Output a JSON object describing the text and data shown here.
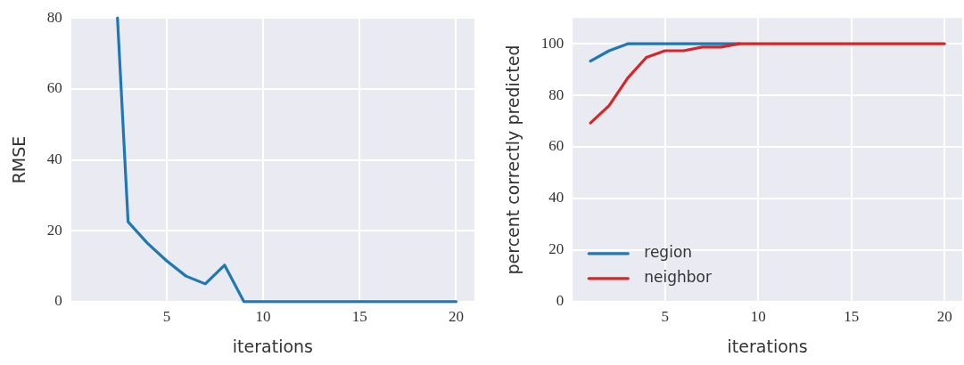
{
  "chart_data": [
    {
      "type": "line",
      "xlabel": "iterations",
      "ylabel": "RMSE",
      "xlim": [
        0.05,
        20.95
      ],
      "xticks": [
        5,
        10,
        15,
        20
      ],
      "ylim": [
        0,
        80
      ],
      "yticks": [
        0,
        20,
        40,
        60,
        80
      ],
      "grid": true,
      "series": [
        {
          "color": "#1f77b4",
          "x": [
            2.45,
            3,
            4,
            5,
            6,
            7,
            8,
            9,
            10,
            11,
            12,
            13,
            14,
            15,
            16,
            17,
            18,
            19,
            20
          ],
          "values": [
            80,
            22.5,
            16.5,
            11.5,
            7.2,
            5,
            10.3,
            0,
            0,
            0,
            0,
            0,
            0,
            0,
            0,
            0,
            0,
            0,
            0
          ]
        }
      ]
    },
    {
      "type": "line",
      "xlabel": "iterations",
      "ylabel": "percent correctly predicted",
      "xlim": [
        0.05,
        20.95
      ],
      "xticks": [
        5,
        10,
        15,
        20
      ],
      "ylim": [
        0,
        110
      ],
      "yticks": [
        0,
        20,
        40,
        60,
        80,
        100
      ],
      "grid": true,
      "legend": "bottom left",
      "x": [
        1,
        2,
        3,
        4,
        5,
        6,
        7,
        8,
        9,
        10,
        11,
        12,
        13,
        14,
        15,
        16,
        17,
        18,
        19,
        20
      ],
      "series": [
        {
          "name": "region",
          "color": "#1f77b4",
          "values": [
            93.3,
            97.3,
            100,
            100,
            100,
            100,
            100,
            100,
            100,
            null,
            null,
            null,
            null,
            null,
            null,
            null,
            null,
            null,
            null,
            null
          ]
        },
        {
          "name": "neighbor",
          "color": "#d62728",
          "values": [
            69.3,
            76,
            86.7,
            94.7,
            97.3,
            97.3,
            98.7,
            98.7,
            100,
            100,
            100,
            100,
            100,
            100,
            100,
            100,
            100,
            100,
            100,
            100
          ]
        }
      ]
    }
  ]
}
